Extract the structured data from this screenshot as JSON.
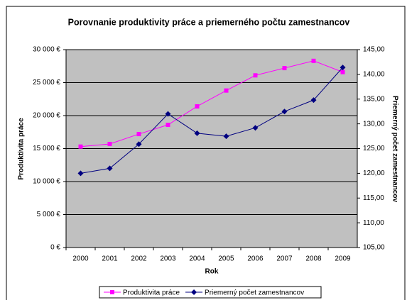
{
  "chart_data": {
    "type": "line",
    "title": "Porovnanie produktivity práce a priemerného počtu zamestnancov",
    "x_label": "Rok",
    "y_label": "Produktivita práce",
    "y2_label": "Priemerný počet zamestnancov",
    "categories": [
      "2000",
      "2001",
      "2002",
      "2003",
      "2004",
      "2005",
      "2006",
      "2007",
      "2008",
      "2009"
    ],
    "series": [
      {
        "name": "Produktivita práce",
        "color": "#ff00ff",
        "values": [
          15300,
          15700,
          17200,
          18600,
          21400,
          23800,
          26100,
          27200,
          28300,
          26600
        ]
      },
      {
        "name": "Priemerný počet zamestnancov",
        "color": "#000080",
        "axis": "y2",
        "values": [
          120.0,
          121.0,
          125.9,
          132.0,
          128.1,
          127.5,
          129.2,
          132.5,
          134.8,
          141.4
        ]
      }
    ],
    "ylim": [
      0,
      30000
    ],
    "yticks": [
      {
        "value": 0,
        "label": "0 €"
      },
      {
        "value": 5000,
        "label": "5 000 €"
      },
      {
        "value": 10000,
        "label": "10 000 €"
      },
      {
        "value": 15000,
        "label": "15 000 €"
      },
      {
        "value": 20000,
        "label": "20 000 €"
      },
      {
        "value": 25000,
        "label": "25 000 €"
      },
      {
        "value": 30000,
        "label": "30 000 €"
      }
    ],
    "y2lim": [
      105,
      145
    ],
    "y2ticks": [
      {
        "value": 105,
        "label": "105,00"
      },
      {
        "value": 110,
        "label": "110,00"
      },
      {
        "value": 115,
        "label": "115,00"
      },
      {
        "value": 120,
        "label": "120,00"
      },
      {
        "value": 125,
        "label": "125,00"
      },
      {
        "value": 130,
        "label": "130,00"
      },
      {
        "value": 135,
        "label": "135,00"
      },
      {
        "value": 140,
        "label": "140,00"
      },
      {
        "value": 145,
        "label": "145,00"
      }
    ],
    "grid": true,
    "legend": "bottom"
  }
}
